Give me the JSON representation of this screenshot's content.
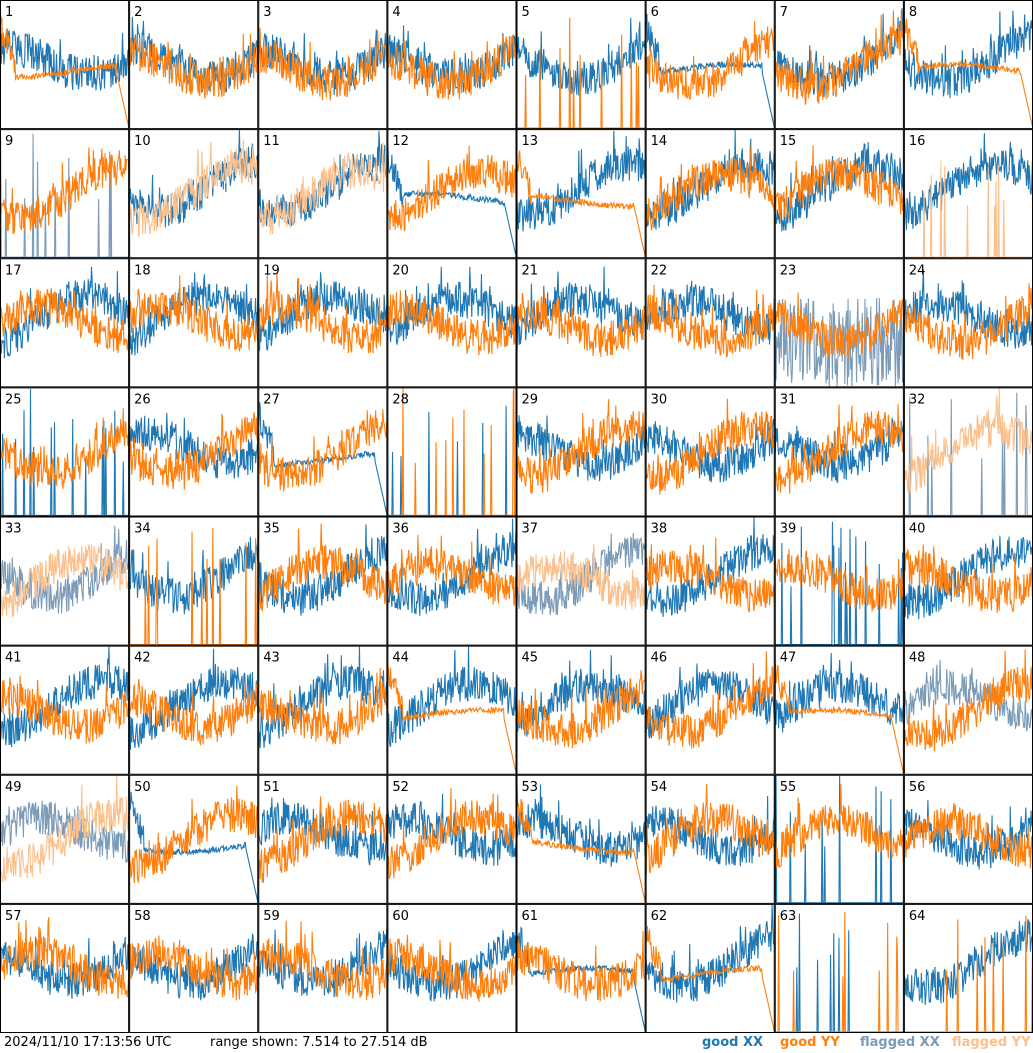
{
  "timestamp": "2024/11/10 17:13:56 UTC",
  "range_text": "range shown: 7.514 to 27.514 dB",
  "legend": [
    {
      "label": "good XX",
      "color": "#1f77b4"
    },
    {
      "label": "good YY",
      "color": "#ff7f0e"
    },
    {
      "label": "flagged XX",
      "color": "#7b9bb8"
    },
    {
      "label": "flagged YY",
      "color": "#fcc08c"
    }
  ],
  "chart_data": {
    "type": "line",
    "title": "",
    "grid_layout": "8x8 small-multiples",
    "ylim_db": [
      7.514,
      27.514
    ],
    "panels": [
      {
        "id": "1",
        "xx": "good",
        "yy": "good",
        "xx_shape": "normal",
        "yy_shape": "droop"
      },
      {
        "id": "2",
        "xx": "good",
        "yy": "good",
        "xx_shape": "normal",
        "yy_shape": "normal"
      },
      {
        "id": "3",
        "xx": "good",
        "yy": "good",
        "xx_shape": "normal",
        "yy_shape": "normal"
      },
      {
        "id": "4",
        "xx": "good",
        "yy": "good",
        "xx_shape": "normal",
        "yy_shape": "normal"
      },
      {
        "id": "5",
        "xx": "good",
        "yy": "good",
        "xx_shape": "normal",
        "yy_shape": "spikes"
      },
      {
        "id": "6",
        "xx": "good",
        "yy": "good",
        "xx_shape": "droop",
        "yy_shape": "normal"
      },
      {
        "id": "7",
        "xx": "good",
        "yy": "good",
        "xx_shape": "normal",
        "yy_shape": "normal"
      },
      {
        "id": "8",
        "xx": "good",
        "yy": "good",
        "xx_shape": "normal",
        "yy_shape": "droop"
      },
      {
        "id": "9",
        "xx": "flagged",
        "yy": "good",
        "xx_shape": "spikes",
        "yy_shape": "normal"
      },
      {
        "id": "10",
        "xx": "good",
        "yy": "flagged",
        "xx_shape": "normal",
        "yy_shape": "normal"
      },
      {
        "id": "11",
        "xx": "good",
        "yy": "flagged",
        "xx_shape": "normal",
        "yy_shape": "normal"
      },
      {
        "id": "12",
        "xx": "good",
        "yy": "good",
        "xx_shape": "droop",
        "yy_shape": "normal"
      },
      {
        "id": "13",
        "xx": "good",
        "yy": "good",
        "xx_shape": "normal",
        "yy_shape": "droop"
      },
      {
        "id": "14",
        "xx": "good",
        "yy": "good",
        "xx_shape": "normal",
        "yy_shape": "normal"
      },
      {
        "id": "15",
        "xx": "good",
        "yy": "good",
        "xx_shape": "normal",
        "yy_shape": "normal"
      },
      {
        "id": "16",
        "xx": "good",
        "yy": "flagged",
        "xx_shape": "normal",
        "yy_shape": "spikes"
      },
      {
        "id": "17",
        "xx": "good",
        "yy": "good",
        "xx_shape": "normal",
        "yy_shape": "normal"
      },
      {
        "id": "18",
        "xx": "good",
        "yy": "good",
        "xx_shape": "normal",
        "yy_shape": "normal"
      },
      {
        "id": "19",
        "xx": "good",
        "yy": "good",
        "xx_shape": "normal",
        "yy_shape": "normal"
      },
      {
        "id": "20",
        "xx": "good",
        "yy": "good",
        "xx_shape": "normal",
        "yy_shape": "normal"
      },
      {
        "id": "21",
        "xx": "good",
        "yy": "good",
        "xx_shape": "normal",
        "yy_shape": "normal"
      },
      {
        "id": "22",
        "xx": "good",
        "yy": "good",
        "xx_shape": "normal",
        "yy_shape": "normal"
      },
      {
        "id": "23",
        "xx": "flagged",
        "yy": "good",
        "xx_shape": "noisy",
        "yy_shape": "normal"
      },
      {
        "id": "24",
        "xx": "good",
        "yy": "good",
        "xx_shape": "normal",
        "yy_shape": "normal"
      },
      {
        "id": "25",
        "xx": "good",
        "yy": "good",
        "xx_shape": "spikes",
        "yy_shape": "normal"
      },
      {
        "id": "26",
        "xx": "good",
        "yy": "good",
        "xx_shape": "normal",
        "yy_shape": "normal"
      },
      {
        "id": "27",
        "xx": "good",
        "yy": "good",
        "xx_shape": "droop",
        "yy_shape": "normal"
      },
      {
        "id": "28",
        "xx": "good",
        "yy": "good",
        "xx_shape": "spikes",
        "yy_shape": "spikes"
      },
      {
        "id": "29",
        "xx": "good",
        "yy": "good",
        "xx_shape": "normal",
        "yy_shape": "normal"
      },
      {
        "id": "30",
        "xx": "good",
        "yy": "good",
        "xx_shape": "normal",
        "yy_shape": "normal"
      },
      {
        "id": "31",
        "xx": "good",
        "yy": "good",
        "xx_shape": "normal",
        "yy_shape": "normal"
      },
      {
        "id": "32",
        "xx": "flagged",
        "yy": "flagged",
        "xx_shape": "spikes",
        "yy_shape": "normal"
      },
      {
        "id": "33",
        "xx": "flagged",
        "yy": "flagged",
        "xx_shape": "normal",
        "yy_shape": "normal"
      },
      {
        "id": "34",
        "xx": "good",
        "yy": "good",
        "xx_shape": "normal",
        "yy_shape": "spikes"
      },
      {
        "id": "35",
        "xx": "good",
        "yy": "good",
        "xx_shape": "normal",
        "yy_shape": "normal"
      },
      {
        "id": "36",
        "xx": "good",
        "yy": "good",
        "xx_shape": "normal",
        "yy_shape": "normal"
      },
      {
        "id": "37",
        "xx": "flagged",
        "yy": "flagged",
        "xx_shape": "normal",
        "yy_shape": "normal"
      },
      {
        "id": "38",
        "xx": "good",
        "yy": "good",
        "xx_shape": "normal",
        "yy_shape": "normal"
      },
      {
        "id": "39",
        "xx": "good",
        "yy": "good",
        "xx_shape": "spikes",
        "yy_shape": "normal"
      },
      {
        "id": "40",
        "xx": "good",
        "yy": "good",
        "xx_shape": "normal",
        "yy_shape": "normal"
      },
      {
        "id": "41",
        "xx": "good",
        "yy": "good",
        "xx_shape": "normal",
        "yy_shape": "normal"
      },
      {
        "id": "42",
        "xx": "good",
        "yy": "good",
        "xx_shape": "normal",
        "yy_shape": "normal"
      },
      {
        "id": "43",
        "xx": "good",
        "yy": "good",
        "xx_shape": "normal",
        "yy_shape": "normal"
      },
      {
        "id": "44",
        "xx": "good",
        "yy": "good",
        "xx_shape": "normal",
        "yy_shape": "droop"
      },
      {
        "id": "45",
        "xx": "good",
        "yy": "good",
        "xx_shape": "normal",
        "yy_shape": "normal"
      },
      {
        "id": "46",
        "xx": "good",
        "yy": "good",
        "xx_shape": "normal",
        "yy_shape": "normal"
      },
      {
        "id": "47",
        "xx": "good",
        "yy": "good",
        "xx_shape": "normal",
        "yy_shape": "droop"
      },
      {
        "id": "48",
        "xx": "flagged",
        "yy": "good",
        "xx_shape": "normal",
        "yy_shape": "normal"
      },
      {
        "id": "49",
        "xx": "flagged",
        "yy": "flagged",
        "xx_shape": "normal",
        "yy_shape": "normal"
      },
      {
        "id": "50",
        "xx": "good",
        "yy": "good",
        "xx_shape": "droop",
        "yy_shape": "normal"
      },
      {
        "id": "51",
        "xx": "good",
        "yy": "good",
        "xx_shape": "normal",
        "yy_shape": "normal"
      },
      {
        "id": "52",
        "xx": "good",
        "yy": "good",
        "xx_shape": "normal",
        "yy_shape": "normal"
      },
      {
        "id": "53",
        "xx": "good",
        "yy": "good",
        "xx_shape": "normal",
        "yy_shape": "droop"
      },
      {
        "id": "54",
        "xx": "good",
        "yy": "good",
        "xx_shape": "normal",
        "yy_shape": "normal"
      },
      {
        "id": "55",
        "xx": "good",
        "yy": "good",
        "xx_shape": "spikes",
        "yy_shape": "normal"
      },
      {
        "id": "56",
        "xx": "good",
        "yy": "good",
        "xx_shape": "normal",
        "yy_shape": "normal"
      },
      {
        "id": "57",
        "xx": "good",
        "yy": "good",
        "xx_shape": "normal",
        "yy_shape": "normal"
      },
      {
        "id": "58",
        "xx": "good",
        "yy": "good",
        "xx_shape": "normal",
        "yy_shape": "normal"
      },
      {
        "id": "59",
        "xx": "good",
        "yy": "good",
        "xx_shape": "normal",
        "yy_shape": "normal"
      },
      {
        "id": "60",
        "xx": "good",
        "yy": "good",
        "xx_shape": "normal",
        "yy_shape": "normal"
      },
      {
        "id": "61",
        "xx": "good",
        "yy": "good",
        "xx_shape": "droop",
        "yy_shape": "normal"
      },
      {
        "id": "62",
        "xx": "good",
        "yy": "good",
        "xx_shape": "normal",
        "yy_shape": "droop"
      },
      {
        "id": "63",
        "xx": "good",
        "yy": "good",
        "xx_shape": "spikes",
        "yy_shape": "spikes"
      },
      {
        "id": "64",
        "xx": "good",
        "yy": "good",
        "xx_shape": "normal",
        "yy_shape": "spikes"
      }
    ]
  }
}
